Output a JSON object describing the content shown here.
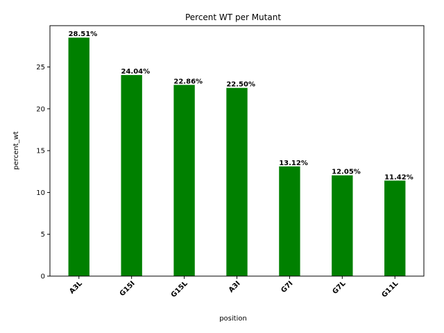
{
  "chart_data": {
    "type": "bar",
    "title": "Percent WT per Mutant",
    "xlabel": "position",
    "ylabel": "percent_wt",
    "categories": [
      "A3L",
      "G15I",
      "G15L",
      "A3I",
      "G7I",
      "G7L",
      "G11L"
    ],
    "values": [
      28.51,
      24.04,
      22.86,
      22.5,
      13.12,
      12.05,
      11.42
    ],
    "data_labels": [
      "28.51%",
      "24.04%",
      "22.86%",
      "22.50%",
      "13.12%",
      "12.05%",
      "11.42%"
    ],
    "yticks": [
      0,
      5,
      10,
      15,
      20,
      25
    ],
    "ylim": [
      0,
      29.94
    ],
    "bar_color": "#008000",
    "grid": false,
    "legend": "none"
  }
}
